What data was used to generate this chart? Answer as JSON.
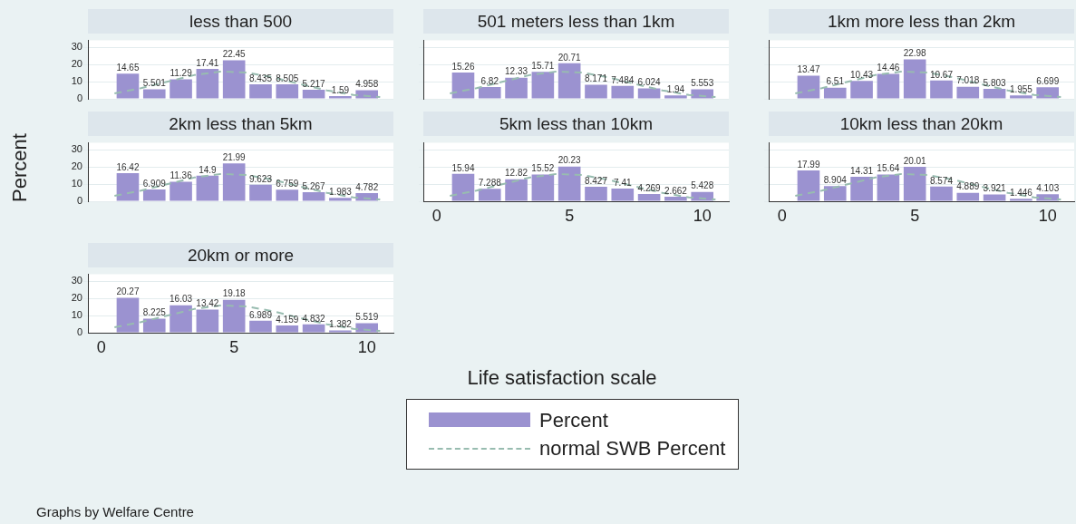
{
  "chart_data": [
    {
      "type": "histogram",
      "title": "less than 500",
      "ylabel": "Percent",
      "bins": [
        0.5,
        1.5,
        2.5,
        3.5,
        4.5,
        5.5,
        6.5,
        7.5,
        8.5,
        9.5,
        10.5
      ],
      "xlim": [
        -0.5,
        11
      ],
      "xticks": [
        0,
        5,
        10
      ],
      "ylim": [
        0,
        34
      ],
      "yticks": [
        0,
        10,
        20,
        30
      ],
      "grid": "y",
      "tick_labels": "y",
      "series": [
        {
          "color": "#9b92d0",
          "values": [
            14.65,
            5.501,
            11.29,
            17.41,
            22.45,
            8.435,
            8.505,
            5.217,
            1.59,
            4.958
          ],
          "value_labels": [
            "14.65",
            "5.501",
            "11.29",
            "17.41",
            "22.45",
            "8.435",
            "8.505",
            "5.217",
            "1.59",
            "4.958"
          ]
        },
        {
          "type": "line",
          "line_style": "dashed",
          "color": "#98bcb0",
          "x": [
            0.5,
            1.5,
            2.5,
            3.5,
            4.5,
            5.5,
            6.5,
            7.5,
            8.5,
            9.5,
            10.5
          ],
          "values": [
            3.2,
            6.2,
            10,
            13.8,
            15.9,
            15.3,
            12.4,
            8.5,
            4.9,
            2.3,
            1
          ]
        }
      ]
    },
    {
      "type": "histogram",
      "title": "501 meters less than 1km",
      "bins": [
        0.5,
        1.5,
        2.5,
        3.5,
        4.5,
        5.5,
        6.5,
        7.5,
        8.5,
        9.5,
        10.5
      ],
      "xlim": [
        -0.5,
        11
      ],
      "xticks": [
        0,
        5,
        10
      ],
      "ylim": [
        0,
        34
      ],
      "yticks": [
        0,
        10,
        20,
        30
      ],
      "grid": "y",
      "tick_labels": false,
      "series": [
        {
          "color": "#9b92d0",
          "values": [
            15.26,
            6.82,
            12.33,
            15.71,
            20.71,
            8.171,
            7.484,
            6.024,
            1.94,
            5.553
          ],
          "value_labels": [
            "15.26",
            "6.82",
            "12.33",
            "15.71",
            "20.71",
            "8.171",
            "7.484",
            "6.024",
            "1.94",
            "5.553"
          ]
        },
        {
          "type": "line",
          "line_style": "dashed",
          "color": "#98bcb0",
          "x": [
            0.5,
            1.5,
            2.5,
            3.5,
            4.5,
            5.5,
            6.5,
            7.5,
            8.5,
            9.5,
            10.5
          ],
          "values": [
            3.2,
            6.2,
            10,
            13.8,
            15.9,
            15.3,
            12.4,
            8.5,
            4.9,
            2.3,
            1
          ]
        }
      ]
    },
    {
      "type": "histogram",
      "title": "1km more  less than 2km",
      "bins": [
        0.5,
        1.5,
        2.5,
        3.5,
        4.5,
        5.5,
        6.5,
        7.5,
        8.5,
        9.5,
        10.5
      ],
      "xlim": [
        -0.5,
        11
      ],
      "xticks": [
        0,
        5,
        10
      ],
      "ylim": [
        0,
        34
      ],
      "yticks": [
        0,
        10,
        20,
        30
      ],
      "grid": "y",
      "tick_labels": false,
      "series": [
        {
          "color": "#9b92d0",
          "values": [
            13.47,
            6.51,
            10.43,
            14.46,
            22.98,
            10.67,
            7.018,
            5.803,
            1.955,
            6.699
          ],
          "value_labels": [
            "13.47",
            "6.51",
            "10.43",
            "14.46",
            "22.98",
            "10.67",
            "7.018",
            "5.803",
            "1.955",
            "6.699"
          ]
        },
        {
          "type": "line",
          "line_style": "dashed",
          "color": "#98bcb0",
          "x": [
            0.5,
            1.5,
            2.5,
            3.5,
            4.5,
            5.5,
            6.5,
            7.5,
            8.5,
            9.5,
            10.5
          ],
          "values": [
            3.2,
            6.2,
            10,
            13.8,
            15.9,
            15.3,
            12.4,
            8.5,
            4.9,
            2.3,
            1
          ]
        }
      ]
    },
    {
      "type": "histogram",
      "title": "2km less than 5km",
      "bins": [
        0.5,
        1.5,
        2.5,
        3.5,
        4.5,
        5.5,
        6.5,
        7.5,
        8.5,
        9.5,
        10.5
      ],
      "xlim": [
        -0.5,
        11
      ],
      "xticks": [
        0,
        5,
        10
      ],
      "ylim": [
        0,
        34
      ],
      "yticks": [
        0,
        10,
        20,
        30
      ],
      "grid": "y",
      "tick_labels": "y",
      "series": [
        {
          "color": "#9b92d0",
          "values": [
            16.42,
            6.909,
            11.36,
            14.9,
            21.99,
            9.623,
            6.759,
            5.267,
            1.983,
            4.782
          ],
          "value_labels": [
            "16.42",
            "6.909",
            "11.36",
            "14.9",
            "21.99",
            "9.623",
            "6.759",
            "5.267",
            "1.983",
            "4.782"
          ]
        },
        {
          "type": "line",
          "line_style": "dashed",
          "color": "#98bcb0",
          "x": [
            0.5,
            1.5,
            2.5,
            3.5,
            4.5,
            5.5,
            6.5,
            7.5,
            8.5,
            9.5,
            10.5
          ],
          "values": [
            3.2,
            6.2,
            10,
            13.8,
            15.9,
            15.3,
            12.4,
            8.5,
            4.9,
            2.3,
            1
          ]
        }
      ]
    },
    {
      "type": "histogram",
      "title": "5km less than 10km",
      "bins": [
        0.5,
        1.5,
        2.5,
        3.5,
        4.5,
        5.5,
        6.5,
        7.5,
        8.5,
        9.5,
        10.5
      ],
      "xlim": [
        -0.5,
        11
      ],
      "xticks": [
        0,
        5,
        10
      ],
      "ylim": [
        0,
        34
      ],
      "yticks": [
        0,
        10,
        20,
        30
      ],
      "grid": "y",
      "tick_labels": "x",
      "series": [
        {
          "color": "#9b92d0",
          "values": [
            15.94,
            7.288,
            12.82,
            15.52,
            20.23,
            8.427,
            7.41,
            4.269,
            2.662,
            5.428
          ],
          "value_labels": [
            "15.94",
            "7.288",
            "12.82",
            "15.52",
            "20.23",
            "8.427",
            "7.41",
            "4.269",
            "2.662",
            "5.428"
          ]
        },
        {
          "type": "line",
          "line_style": "dashed",
          "color": "#98bcb0",
          "x": [
            0.5,
            1.5,
            2.5,
            3.5,
            4.5,
            5.5,
            6.5,
            7.5,
            8.5,
            9.5,
            10.5
          ],
          "values": [
            3.2,
            6.2,
            10,
            13.8,
            15.9,
            15.3,
            12.4,
            8.5,
            4.9,
            2.3,
            1
          ]
        }
      ]
    },
    {
      "type": "histogram",
      "title": "10km less than 20km",
      "bins": [
        0.5,
        1.5,
        2.5,
        3.5,
        4.5,
        5.5,
        6.5,
        7.5,
        8.5,
        9.5,
        10.5
      ],
      "xlim": [
        -0.5,
        11
      ],
      "xticks": [
        0,
        5,
        10
      ],
      "ylim": [
        0,
        34
      ],
      "yticks": [
        0,
        10,
        20,
        30
      ],
      "grid": "y",
      "tick_labels": "x",
      "series": [
        {
          "color": "#9b92d0",
          "values": [
            17.99,
            8.904,
            14.31,
            15.64,
            20.01,
            8.574,
            4.889,
            3.921,
            1.446,
            4.103
          ],
          "value_labels": [
            "17.99",
            "8.904",
            "14.31",
            "15.64",
            "20.01",
            "8.574",
            "4.889",
            "3.921",
            "1.446",
            "4.103"
          ]
        },
        {
          "type": "line",
          "line_style": "dashed",
          "color": "#98bcb0",
          "x": [
            0.5,
            1.5,
            2.5,
            3.5,
            4.5,
            5.5,
            6.5,
            7.5,
            8.5,
            9.5,
            10.5
          ],
          "values": [
            3.2,
            6.2,
            10,
            13.8,
            15.9,
            15.3,
            12.4,
            8.5,
            4.9,
            2.3,
            1
          ]
        }
      ]
    },
    {
      "type": "histogram",
      "title": "20km or more",
      "xlabel": "Life satisfaction scale",
      "legend": "bottom",
      "annotations": [
        "Graphs by Welfare Centre"
      ],
      "bins": [
        0.5,
        1.5,
        2.5,
        3.5,
        4.5,
        5.5,
        6.5,
        7.5,
        8.5,
        9.5,
        10.5
      ],
      "xlim": [
        -0.5,
        11
      ],
      "xticks": [
        0,
        5,
        10
      ],
      "ylim": [
        0,
        34
      ],
      "yticks": [
        0,
        10,
        20,
        30
      ],
      "grid": "y",
      "series": [
        {
          "name": "Percent",
          "color": "#9b92d0",
          "values": [
            20.27,
            8.225,
            16.03,
            13.42,
            19.18,
            6.989,
            4.159,
            4.832,
            1.382,
            5.519
          ],
          "value_labels": [
            "20.27",
            "8.225",
            "16.03",
            "13.42",
            "19.18",
            "6.989",
            "4.159",
            "4.832",
            "1.382",
            "5.519"
          ]
        },
        {
          "name": "normal SWB Percent",
          "type": "line",
          "line_style": "dashed",
          "color": "#98bcb0",
          "x": [
            0.5,
            1.5,
            2.5,
            3.5,
            4.5,
            5.5,
            6.5,
            7.5,
            8.5,
            9.5,
            10.5
          ],
          "values": [
            3.2,
            6.2,
            10,
            13.8,
            15.9,
            15.3,
            12.4,
            8.5,
            4.9,
            2.3,
            1
          ]
        }
      ]
    }
  ]
}
